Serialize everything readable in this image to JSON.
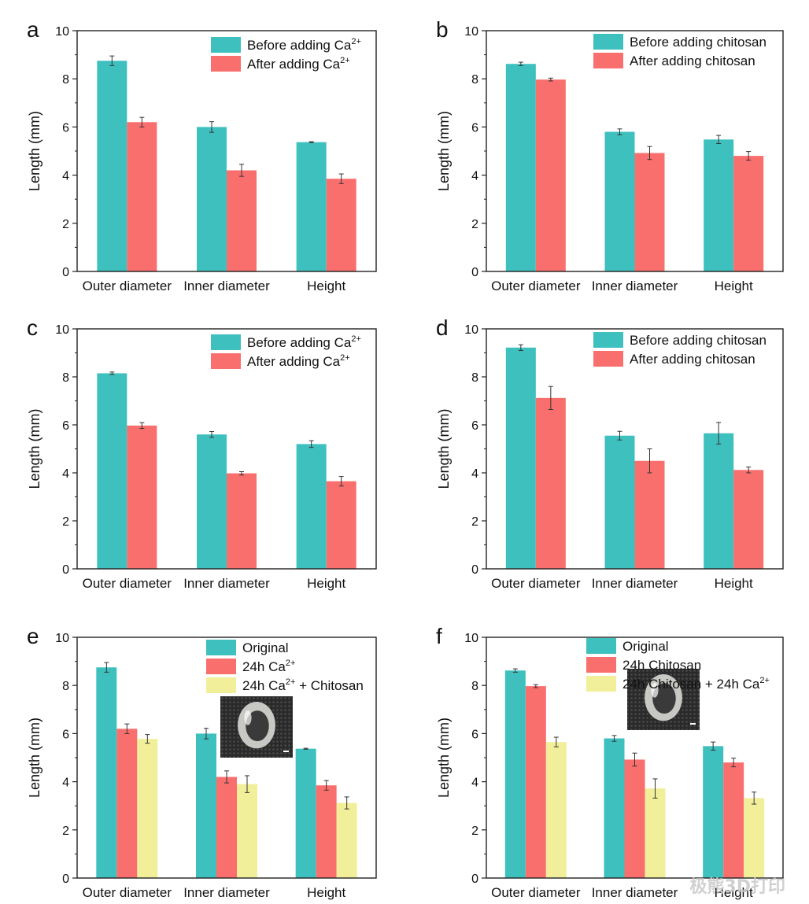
{
  "colors": {
    "before": "#3EC0BE",
    "after": "#F96F6E",
    "third": "#F1EF9A"
  },
  "watermark": "极熊3D打印",
  "chart_data": [
    {
      "panel": "a",
      "type": "bar",
      "ylabel": "Length (mm)",
      "ylim": [
        0,
        10
      ],
      "yticks": [
        0,
        2,
        4,
        6,
        8,
        10
      ],
      "categories": [
        "Outer diameter",
        "Inner diameter",
        "Height"
      ],
      "series": [
        {
          "name": "Before adding Ca",
          "sup": "2+",
          "values": [
            8.75,
            6.0,
            5.37
          ],
          "errors": [
            0.2,
            0.22,
            0.02
          ]
        },
        {
          "name": "After adding Ca",
          "sup": "2+",
          "values": [
            6.2,
            4.2,
            3.85
          ],
          "errors": [
            0.2,
            0.25,
            0.2
          ]
        }
      ],
      "legend": "top-right",
      "inset": false
    },
    {
      "panel": "b",
      "type": "bar",
      "ylabel": "Length (mm)",
      "ylim": [
        0,
        10
      ],
      "yticks": [
        0,
        2,
        4,
        6,
        8,
        10
      ],
      "categories": [
        "Outer diameter",
        "Inner diameter",
        "Height"
      ],
      "series": [
        {
          "name": "Before adding chitosan",
          "sup": "",
          "values": [
            8.62,
            5.8,
            5.48
          ],
          "errors": [
            0.07,
            0.12,
            0.17
          ]
        },
        {
          "name": "After adding chitosan",
          "sup": "",
          "values": [
            7.97,
            4.92,
            4.8
          ],
          "errors": [
            0.06,
            0.27,
            0.18
          ]
        }
      ],
      "legend": "top-right",
      "inset": false
    },
    {
      "panel": "c",
      "type": "bar",
      "ylabel": "Length (mm)",
      "ylim": [
        0,
        10
      ],
      "yticks": [
        0,
        2,
        4,
        6,
        8,
        10
      ],
      "categories": [
        "Outer diameter",
        "Inner diameter",
        "Height"
      ],
      "series": [
        {
          "name": "Before adding Ca",
          "sup": "2+",
          "values": [
            8.15,
            5.6,
            5.2
          ],
          "errors": [
            0.05,
            0.12,
            0.14
          ]
        },
        {
          "name": "After adding Ca",
          "sup": "2+",
          "values": [
            5.97,
            3.98,
            3.65
          ],
          "errors": [
            0.12,
            0.07,
            0.2
          ]
        }
      ],
      "legend": "top-right",
      "inset": false
    },
    {
      "panel": "d",
      "type": "bar",
      "ylabel": "Length (mm)",
      "ylim": [
        0,
        10
      ],
      "yticks": [
        0,
        2,
        4,
        6,
        8,
        10
      ],
      "categories": [
        "Outer diameter",
        "Inner diameter",
        "Height"
      ],
      "series": [
        {
          "name": "Before adding chitosan",
          "sup": "",
          "values": [
            9.22,
            5.55,
            5.65
          ],
          "errors": [
            0.12,
            0.18,
            0.45
          ]
        },
        {
          "name": "After adding chitosan",
          "sup": "",
          "values": [
            7.12,
            4.5,
            4.12
          ],
          "errors": [
            0.48,
            0.5,
            0.12
          ]
        }
      ],
      "legend": "top-right",
      "inset": false
    },
    {
      "panel": "e",
      "type": "bar",
      "ylabel": "Length (mm)",
      "ylim": [
        0,
        10
      ],
      "yticks": [
        0,
        2,
        4,
        6,
        8,
        10
      ],
      "categories": [
        "Outer diameter",
        "Inner diameter",
        "Height"
      ],
      "series": [
        {
          "name": "Original",
          "sup": "",
          "values": [
            8.75,
            6.0,
            5.37
          ],
          "errors": [
            0.2,
            0.22,
            0.02
          ]
        },
        {
          "name": "24h Ca",
          "sup": "2+",
          "values": [
            6.2,
            4.2,
            3.85
          ],
          "errors": [
            0.2,
            0.25,
            0.2
          ]
        },
        {
          "name": "24h Ca",
          "sup": "2+",
          "suffix": " + Chitosan",
          "values": [
            5.78,
            3.9,
            3.12
          ],
          "errors": [
            0.18,
            0.35,
            0.25
          ]
        }
      ],
      "legend": "top-right",
      "inset": true
    },
    {
      "panel": "f",
      "type": "bar",
      "ylabel": "Length (mm)",
      "ylim": [
        0,
        10
      ],
      "yticks": [
        0,
        2,
        4,
        6,
        8,
        10
      ],
      "categories": [
        "Outer diameter",
        "Inner diameter",
        "Height"
      ],
      "series": [
        {
          "name": "Original",
          "sup": "",
          "values": [
            8.62,
            5.8,
            5.48
          ],
          "errors": [
            0.07,
            0.12,
            0.17
          ]
        },
        {
          "name": "24h Chitosan",
          "sup": "",
          "values": [
            7.97,
            4.92,
            4.8
          ],
          "errors": [
            0.06,
            0.27,
            0.18
          ]
        },
        {
          "name": "24h Chitosan + 24h Ca",
          "sup": "2+",
          "values": [
            5.65,
            3.72,
            3.32
          ],
          "errors": [
            0.2,
            0.4,
            0.25
          ]
        }
      ],
      "legend": "top-right",
      "inset": true
    }
  ]
}
